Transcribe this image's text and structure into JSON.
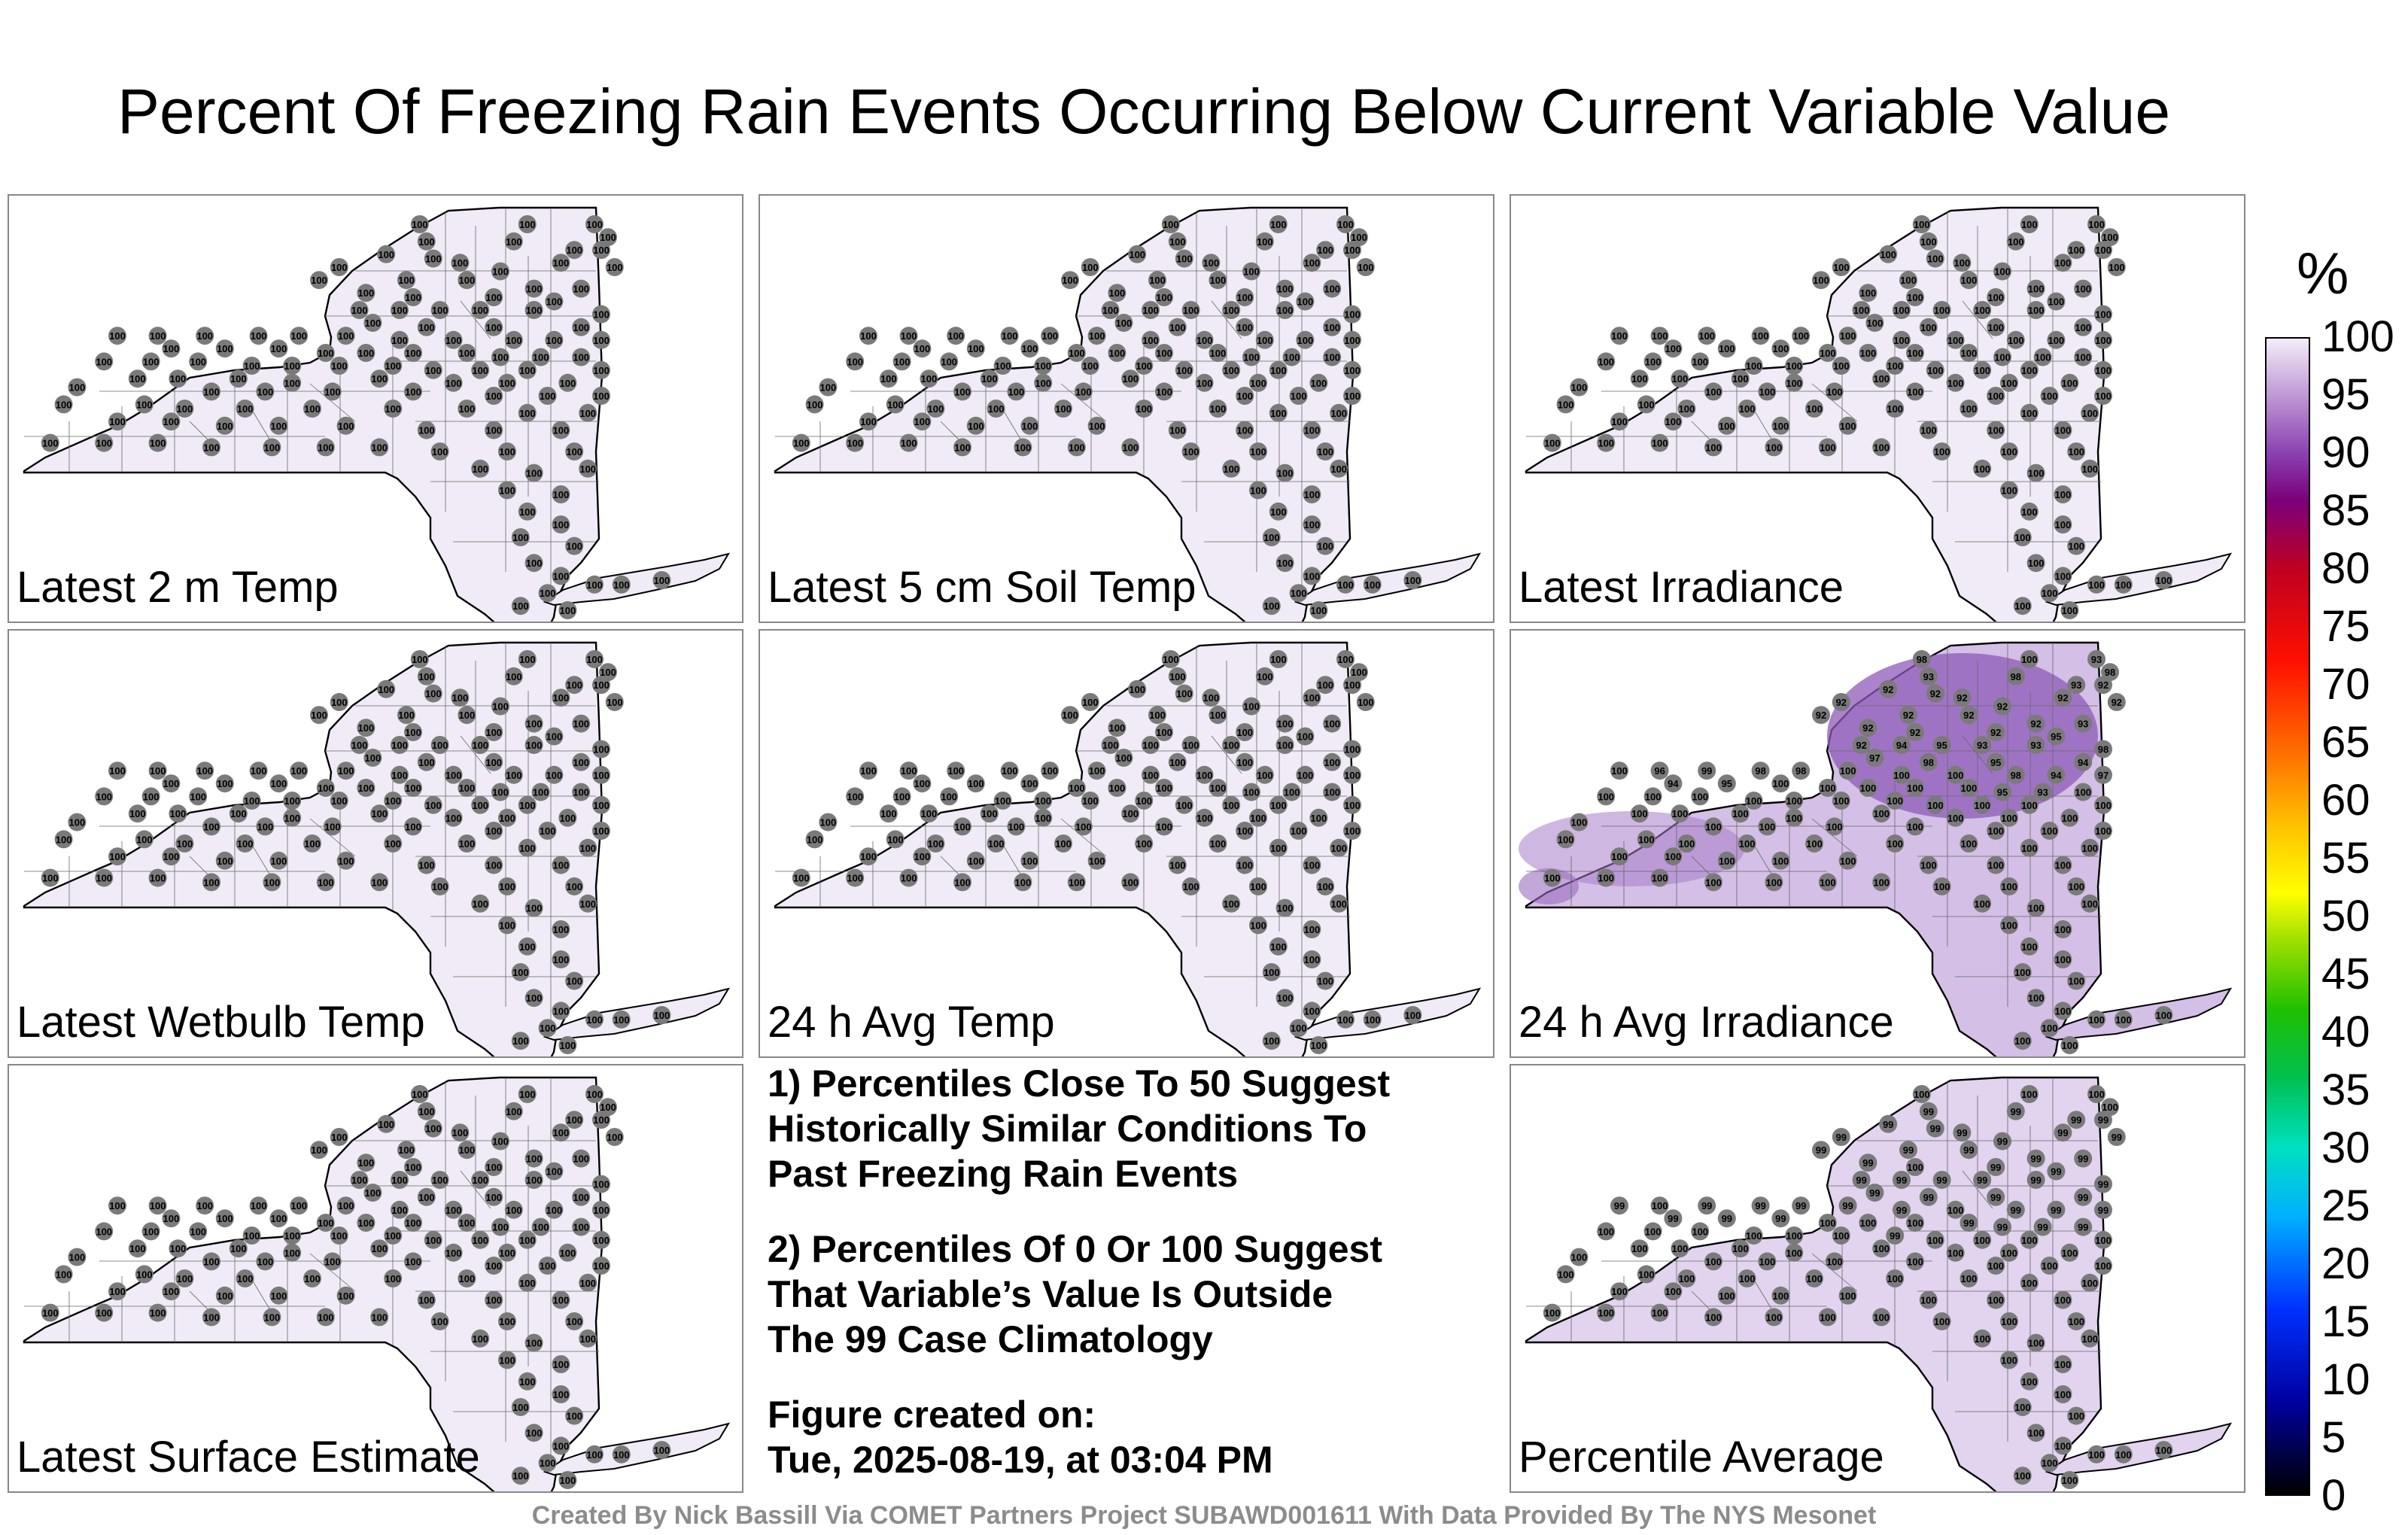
{
  "title": "Percent Of Freezing Rain Events Occurring Below Current Variable Value",
  "panels": [
    {
      "label": "Latest 2 m Temp",
      "value_set": "all100"
    },
    {
      "label": "Latest 5 cm Soil Temp",
      "value_set": "all100"
    },
    {
      "label": "Latest Irradiance",
      "value_set": "all100"
    },
    {
      "label": "Latest Wetbulb Temp",
      "value_set": "all100"
    },
    {
      "label": "24 h Avg Temp",
      "value_set": "all100"
    },
    {
      "label": "24 h Avg Irradiance",
      "value_set": "irradiance"
    },
    {
      "label": "Latest Surface Estimate",
      "value_set": "all100"
    },
    {
      "label": "Percentile Average",
      "value_set": "average"
    }
  ],
  "station_values": {
    "all100": [
      100,
      100,
      100,
      100,
      100,
      100,
      100,
      100,
      100,
      100,
      100,
      100,
      100,
      100,
      100,
      100,
      100,
      100,
      100,
      100,
      100,
      100,
      100,
      100,
      100,
      100,
      100,
      100,
      100,
      100,
      100,
      100,
      100,
      100,
      100,
      100,
      100,
      100,
      100,
      100,
      100,
      100,
      100,
      100,
      100,
      100,
      100,
      100,
      100,
      100,
      100,
      100,
      100,
      100,
      100,
      100,
      100,
      100,
      100,
      100,
      100,
      100,
      100,
      100,
      100,
      100,
      100,
      100,
      100,
      100,
      100,
      100,
      100,
      100,
      100,
      100,
      100,
      100,
      100,
      100,
      100,
      100,
      100,
      100,
      100,
      100,
      100,
      100,
      100,
      100,
      100,
      100,
      100,
      100,
      100,
      100,
      100,
      100,
      100,
      100,
      100,
      100,
      100,
      100,
      100,
      100,
      100,
      100,
      100,
      100,
      100,
      100,
      100,
      100,
      100,
      100,
      100,
      100,
      100,
      100,
      100,
      100,
      100,
      100,
      100,
      100
    ],
    "irradiance": [
      98,
      100,
      93,
      98,
      93,
      98,
      92,
      92,
      92,
      93,
      92,
      92,
      92,
      92,
      92,
      92,
      92,
      92,
      92,
      93,
      92,
      92,
      92,
      95,
      92,
      94,
      95,
      93,
      93,
      98,
      97,
      98,
      95,
      94,
      100,
      96,
      99,
      98,
      98,
      100,
      100,
      100,
      98,
      94,
      97,
      94,
      95,
      100,
      100,
      100,
      100,
      100,
      95,
      93,
      100,
      100,
      100,
      100,
      100,
      100,
      100,
      100,
      100,
      100,
      100,
      100,
      100,
      100,
      100,
      100,
      100,
      100,
      100,
      100,
      100,
      100,
      100,
      100,
      100,
      100,
      100,
      100,
      100,
      100,
      100,
      100,
      100,
      100,
      100,
      100,
      100,
      100,
      100,
      100,
      100,
      100,
      100,
      100,
      100,
      100,
      100,
      100,
      100,
      100,
      100,
      100,
      100,
      100,
      100,
      100,
      100,
      100,
      100,
      100,
      100,
      100,
      100,
      100,
      100,
      100,
      100,
      100,
      100,
      100,
      100,
      100
    ],
    "average": [
      100,
      100,
      100,
      100,
      99,
      99,
      99,
      99,
      99,
      99,
      99,
      99,
      99,
      99,
      99,
      99,
      99,
      99,
      99,
      99,
      99,
      100,
      99,
      99,
      99,
      99,
      99,
      99,
      99,
      99,
      99,
      99,
      99,
      99,
      99,
      100,
      99,
      99,
      99,
      99,
      99,
      100,
      99,
      99,
      99,
      99,
      99,
      99,
      100,
      100,
      100,
      99,
      99,
      99,
      99,
      100,
      100,
      100,
      100,
      100,
      100,
      99,
      100,
      100,
      100,
      100,
      100,
      100,
      100,
      100,
      100,
      100,
      100,
      100,
      100,
      100,
      100,
      100,
      100,
      100,
      100,
      100,
      100,
      100,
      100,
      100,
      100,
      100,
      100,
      100,
      100,
      100,
      100,
      100,
      100,
      100,
      100,
      100,
      100,
      100,
      100,
      100,
      100,
      100,
      100,
      100,
      100,
      100,
      100,
      100,
      100,
      100,
      100,
      100,
      100,
      100,
      100,
      100,
      100,
      100,
      100,
      100,
      100,
      100,
      100,
      100
    ]
  },
  "notes": [
    "1) Percentiles Close To 50 Suggest\nHistorically Similar Conditions To\nPast Freezing Rain Events",
    "2) Percentiles Of 0 Or 100 Suggest\nThat Variable’s Value Is Outside\nThe 99 Case Climatology",
    "Figure created on:\nTue, 2025-08-19, at 03:04 PM"
  ],
  "colorbar": {
    "unit": "%",
    "ticks": [
      "100",
      "95",
      "90",
      "85",
      "80",
      "75",
      "70",
      "65",
      "60",
      "55",
      "50",
      "45",
      "40",
      "35",
      "30",
      "25",
      "20",
      "15",
      "10",
      "5",
      "0"
    ]
  },
  "footer": "Created By Nick Bassill Via COMET Partners Project SUBAWD001611 With Data Provided By The NYS Mesonet"
}
